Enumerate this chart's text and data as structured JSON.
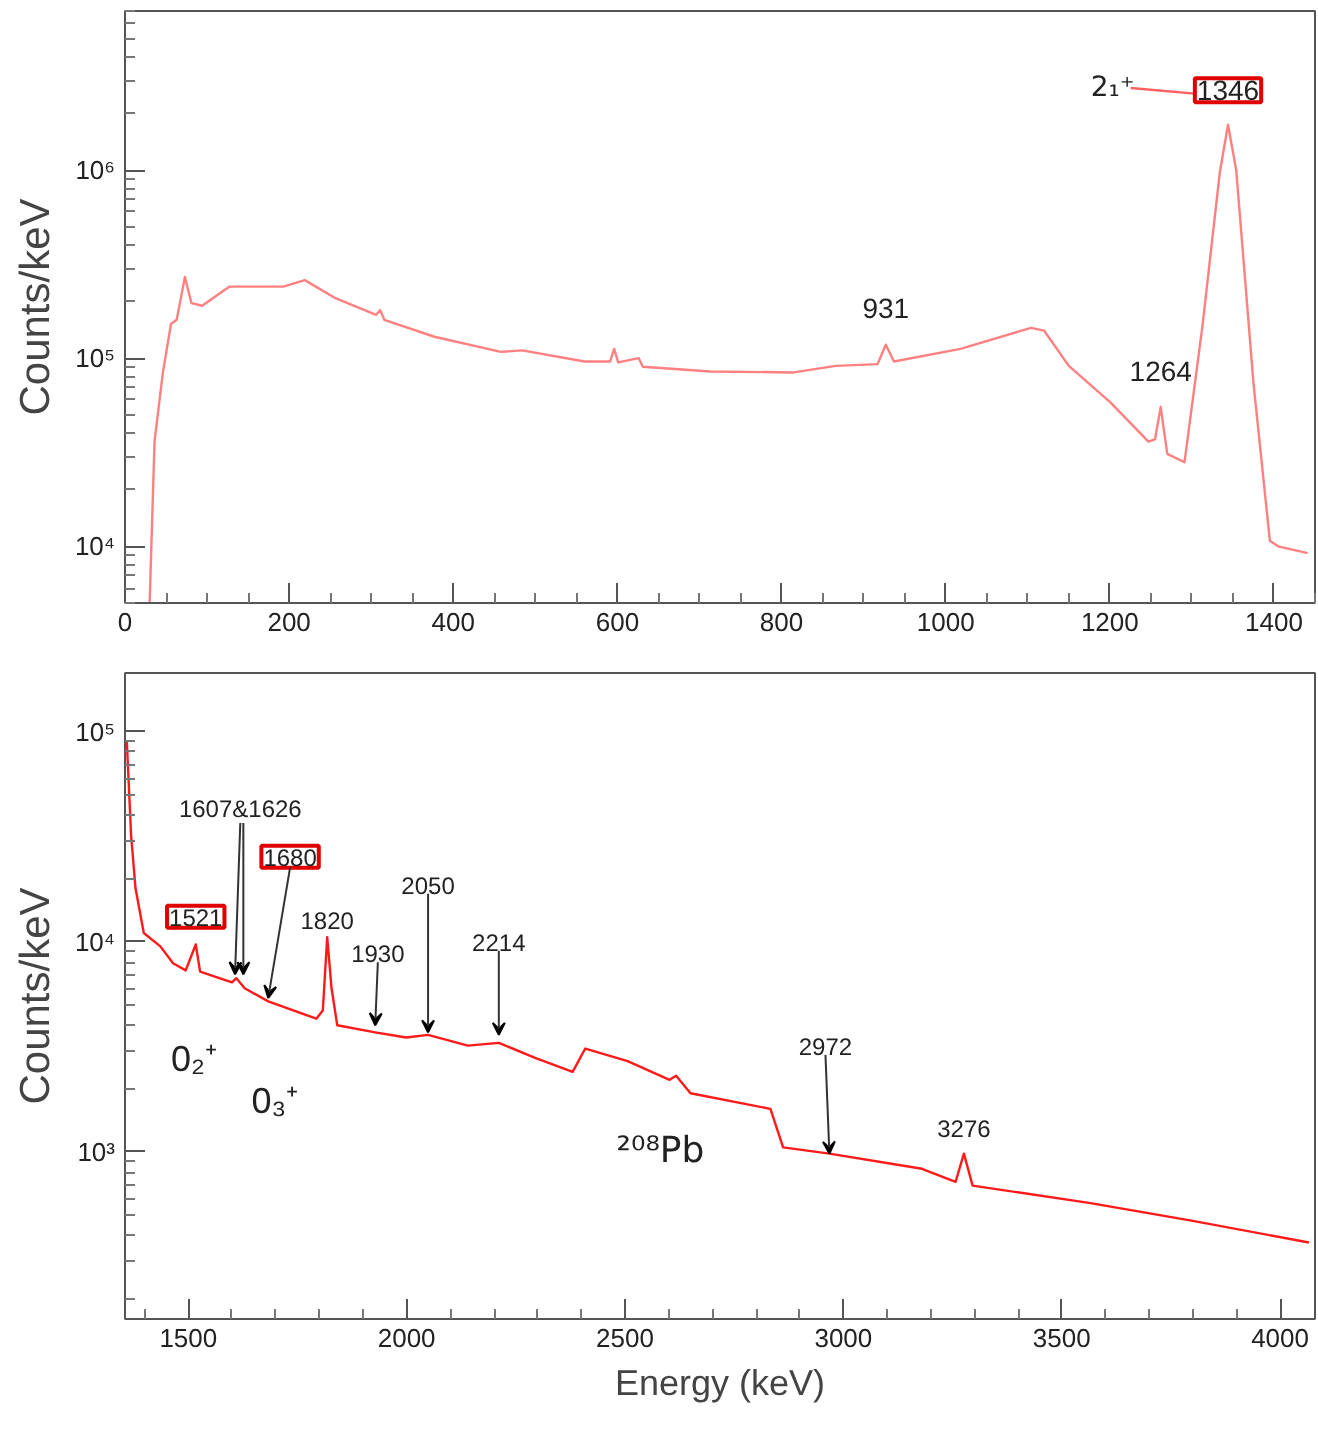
{
  "chart_data": [
    {
      "type": "line",
      "ylabel": "Counts/keV",
      "log": "y",
      "xlim": [
        0,
        1450
      ],
      "ylim": [
        5000,
        7000000
      ],
      "xticks": [
        0,
        200,
        400,
        600,
        800,
        1000,
        1200,
        1400
      ],
      "yticks": [
        {
          "value": 10000,
          "label": "10⁴"
        },
        {
          "value": 100000,
          "label": "10⁵"
        },
        {
          "value": 1000000,
          "label": "10⁶"
        }
      ],
      "series": [
        {
          "color": "#ff8080",
          "x": [
            30,
            36,
            46,
            56,
            63,
            73,
            81,
            94,
            127,
            193,
            219,
            255,
            306,
            311,
            316,
            377,
            458,
            484,
            560,
            591,
            596,
            601,
            626,
            631,
            713,
            815,
            866,
            917,
            927,
            937,
            1018,
            1104,
            1120,
            1150,
            1201,
            1247,
            1255,
            1262,
            1270,
            1291,
            1313,
            1334,
            1344,
            1354,
            1375,
            1395,
            1405,
            1441
          ],
          "values": [
            5000,
            36000,
            83000,
            152000,
            160000,
            270000,
            196000,
            190000,
            240000,
            240000,
            260000,
            210000,
            170000,
            180000,
            160000,
            130000,
            108000,
            110000,
            96000,
            96000,
            112000,
            95000,
            100000,
            90000,
            85000,
            84000,
            91000,
            93000,
            118000,
            96000,
            112000,
            145000,
            140000,
            91000,
            58000,
            36000,
            37000,
            55000,
            31000,
            28000,
            150000,
            970000,
            1740000,
            1000000,
            74000,
            10700,
            10000,
            9200
          ]
        }
      ],
      "annotations": [
        {
          "text": "931",
          "x": 927,
          "y": 118000
        },
        {
          "text": "1264",
          "x": 1262,
          "y": 55000
        },
        {
          "text": "1346",
          "x": 1344,
          "y": 1740000
        },
        "2₁⁺"
      ]
    },
    {
      "type": "line",
      "xlabel": "Energy (keV)",
      "ylabel": "Counts/keV",
      "log": "y",
      "xlim": [
        1355,
        4080
      ],
      "ylim": [
        160,
        190000
      ],
      "xticks": [
        1500,
        2000,
        2500,
        3000,
        3500,
        4000
      ],
      "yticks": [
        {
          "value": 1000,
          "label": "10³"
        },
        {
          "value": 10000,
          "label": "10⁴"
        },
        {
          "value": 100000,
          "label": "10⁵"
        }
      ],
      "series": [
        {
          "color": "#ff1a1a",
          "x": [
            1359,
            1369,
            1379,
            1398,
            1436,
            1465,
            1494,
            1517,
            1527,
            1600,
            1610,
            1629,
            1683,
            1793,
            1808,
            1818,
            1828,
            1841,
            1928,
            1999,
            2049,
            2140,
            2211,
            2294,
            2380,
            2409,
            2506,
            2602,
            2617,
            2650,
            2833,
            2862,
            2968,
            3180,
            3257,
            3276,
            3296,
            3566,
            3797,
            4066
          ],
          "values": [
            91000,
            32000,
            18000,
            11000,
            9500,
            7900,
            7300,
            9700,
            7200,
            6400,
            6700,
            6000,
            5200,
            4300,
            4700,
            10500,
            6000,
            4000,
            3700,
            3500,
            3600,
            3200,
            3300,
            2800,
            2400,
            3100,
            2700,
            2200,
            2300,
            1900,
            1600,
            1050,
            980,
            830,
            720,
            980,
            690,
            570,
            470,
            370
          ]
        }
      ],
      "annotations": [
        {
          "text": "1521",
          "x": 1517,
          "y": 9700
        },
        {
          "text": "1607&1626",
          "x": 1607,
          "y": 7000
        },
        {
          "text": "1680",
          "x": 1683,
          "y": 5400
        },
        {
          "text": "1820",
          "x": 1818,
          "y": 10500
        },
        {
          "text": "1930",
          "x": 1928,
          "y": 4000
        },
        {
          "text": "2050",
          "x": 2049,
          "y": 3700
        },
        {
          "text": "2214",
          "x": 2211,
          "y": 3600
        },
        {
          "text": "2972",
          "x": 2968,
          "y": 980
        },
        {
          "text": "3276",
          "x": 3276,
          "y": 980
        },
        {
          "text": "0₂⁺",
          "x": 1521,
          "y": 7200
        },
        {
          "text": "0₃⁺",
          "x": 1683,
          "y": 5200
        },
        "²⁰⁸Pb"
      ]
    }
  ]
}
